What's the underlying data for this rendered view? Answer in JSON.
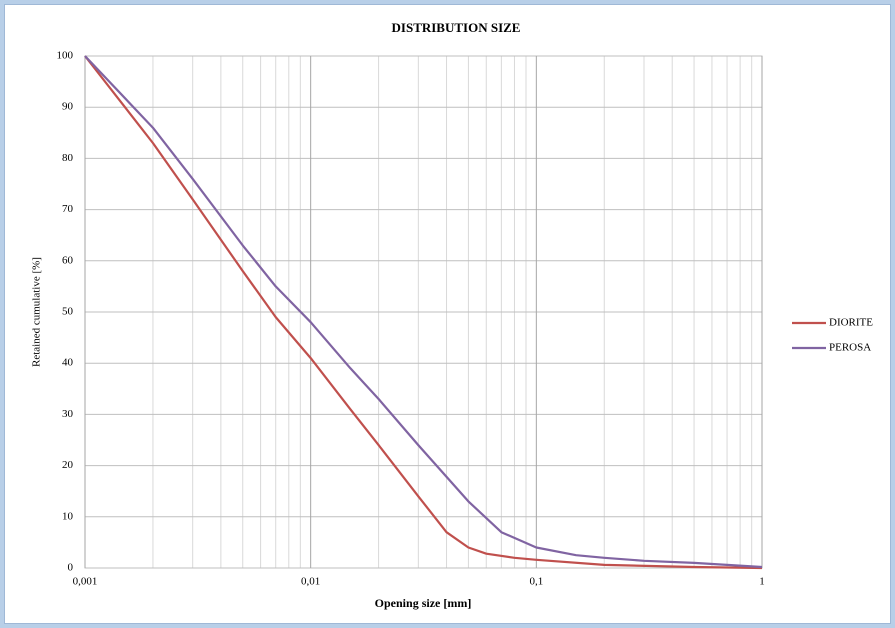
{
  "chart_data": {
    "type": "line",
    "title": "DISTRIBUTION  SIZE",
    "x_label": "Opening size [mm]",
    "y_label": "Retained cumulative [%]",
    "x_log": true,
    "grid": true,
    "legend": "right",
    "xlim": [
      0.001,
      1
    ],
    "ylim": [
      0,
      100
    ],
    "xticks": [
      {
        "value": 0.001,
        "label": "0,001"
      },
      {
        "value": 0.01,
        "label": "0,01"
      },
      {
        "value": 0.1,
        "label": "0,1"
      },
      1
    ],
    "xminorticks": [
      0.002,
      0.003,
      0.004,
      0.005,
      0.006,
      0.007,
      0.008,
      0.009,
      0.02,
      0.03,
      0.04,
      0.05,
      0.06,
      0.07,
      0.08,
      0.09,
      0.2,
      0.3,
      0.4,
      0.5,
      0.6,
      0.7,
      0.8,
      0.9
    ],
    "yticks": [
      0,
      10,
      20,
      30,
      40,
      50,
      60,
      70,
      80,
      90,
      100
    ],
    "series": [
      {
        "name": "DIORITE",
        "color": "#c0504d",
        "x": [
          0.001,
          0.002,
          0.003,
          0.005,
          0.007,
          0.01,
          0.015,
          0.02,
          0.03,
          0.04,
          0.05,
          0.06,
          0.08,
          0.1,
          0.2,
          0.5,
          1
        ],
        "values": [
          100,
          83,
          72,
          58,
          49,
          41,
          31,
          24,
          14,
          7,
          4,
          2.8,
          2,
          1.6,
          0.6,
          0.2,
          0
        ]
      },
      {
        "name": "PEROSA",
        "color": "#8064a2",
        "x": [
          0.001,
          0.002,
          0.003,
          0.005,
          0.007,
          0.01,
          0.015,
          0.02,
          0.03,
          0.05,
          0.07,
          0.1,
          0.15,
          0.2,
          0.3,
          0.5,
          1
        ],
        "values": [
          100,
          86,
          76,
          63,
          55,
          48,
          39,
          33,
          24,
          13,
          7,
          4,
          2.5,
          2,
          1.4,
          1,
          0.2
        ]
      }
    ]
  }
}
